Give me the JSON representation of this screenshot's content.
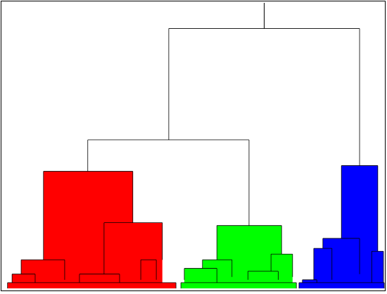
{
  "chart_data": {
    "type": "dendrogram",
    "xlim": [
      0,
      100
    ],
    "ylim": [
      0,
      100
    ],
    "links": [
      {
        "h": 91,
        "x": [
          43.1,
          93.5
        ],
        "legs": [
          52,
          43
        ],
        "color": null
      },
      {
        "h": 52,
        "x": [
          21.7,
          64.3
        ],
        "legs": [
          41,
          22
        ],
        "color": null
      },
      {
        "h": 43,
        "x": [
          88.7,
          98.3
        ],
        "legs": [
          17.5,
          13
        ],
        "color": "#0000ff"
      },
      {
        "h": 41,
        "x": [
          10,
          33.6
        ],
        "legs": [
          10,
          23
        ],
        "color": "#ff0000"
      },
      {
        "h": 23,
        "x": [
          26,
          41.4
        ],
        "legs": [
          5,
          10
        ],
        "color": "#ff0000"
      },
      {
        "h": 22,
        "x": [
          55.8,
          72.9
        ],
        "legs": [
          10,
          12
        ],
        "color": "#00ff00"
      },
      {
        "h": 17.5,
        "x": [
          83.8,
          93.5
        ],
        "legs": [
          14,
          5
        ],
        "color": "#0000ff"
      },
      {
        "h": 14,
        "x": [
          81.4,
          86.2
        ],
        "legs": [
          3,
          3
        ],
        "color": "#0000ff"
      },
      {
        "h": 13,
        "x": [
          96.7,
          99.8
        ],
        "legs": [
          2,
          2
        ],
        "color": "#0000ff"
      },
      {
        "h": 12,
        "x": [
          70.1,
          75.8
        ],
        "legs": [
          6,
          4
        ],
        "color": "#00ff00"
      },
      {
        "h": 10,
        "x": [
          4.1,
          15.6
        ],
        "legs": [
          5,
          3
        ],
        "color": "#ff0000"
      },
      {
        "h": 10,
        "x": [
          35.7,
          39.8
        ],
        "legs": [
          3,
          3
        ],
        "color": "#ff0000"
      },
      {
        "h": 10,
        "x": [
          52,
          59.8
        ],
        "legs": [
          7,
          4
        ],
        "color": "#00ff00"
      },
      {
        "h": 7,
        "x": [
          47.2,
          55.8
        ],
        "legs": [
          3,
          2
        ],
        "color": "#00ff00"
      },
      {
        "h": 6,
        "x": [
          64,
          72
        ],
        "legs": [
          3,
          3
        ],
        "color": "#00ff00"
      },
      {
        "h": 5,
        "x": [
          1.7,
          7.8
        ],
        "legs": [
          2,
          2
        ],
        "color": "#ff0000"
      },
      {
        "h": 5,
        "x": [
          19.5,
          30.1
        ],
        "legs": [
          2,
          2
        ],
        "color": "#ff0000"
      },
      {
        "h": 3,
        "x": [
          78.4,
          82.2
        ],
        "legs": [
          1,
          1
        ],
        "color": "#0000ff"
      },
      {
        "h": 2,
        "x": [
          0.5,
          45
        ],
        "legs": [
          0,
          0
        ],
        "color": "#ff0000"
      },
      {
        "h": 2,
        "x": [
          46.3,
          76.8
        ],
        "legs": [
          0,
          0
        ],
        "color": "#00ff00"
      },
      {
        "h": 2,
        "x": [
          77.5,
          100
        ],
        "legs": [
          0,
          0
        ],
        "color": "#0000ff"
      }
    ]
  }
}
